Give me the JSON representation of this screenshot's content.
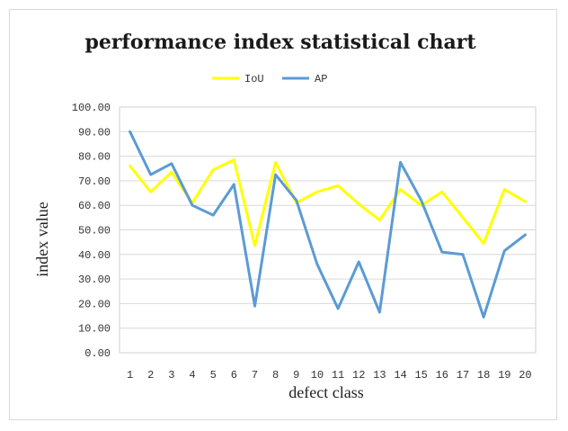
{
  "chart_data": {
    "type": "line",
    "title": "performance index statistical chart",
    "xlabel": "defect class",
    "ylabel": "index value",
    "categories": [
      "1",
      "2",
      "3",
      "4",
      "5",
      "6",
      "7",
      "8",
      "9",
      "10",
      "11",
      "12",
      "13",
      "14",
      "15",
      "16",
      "17",
      "18",
      "19",
      "20"
    ],
    "ylim": [
      0,
      100
    ],
    "yticks": [
      "0.00",
      "10.00",
      "20.00",
      "30.00",
      "40.00",
      "50.00",
      "60.00",
      "70.00",
      "80.00",
      "90.00",
      "100.00"
    ],
    "legend_position": "top",
    "grid": true,
    "series": [
      {
        "name": "IoU",
        "color": "#FFFF00",
        "values": [
          76,
          65.5,
          73.5,
          61,
          74.5,
          78.5,
          43.5,
          77.5,
          61,
          65.5,
          68,
          60.5,
          54,
          66.5,
          60,
          65.5,
          55,
          44.5,
          66.5,
          61.5
        ]
      },
      {
        "name": "AP",
        "color": "#5B9BD5",
        "values": [
          90,
          72.5,
          77,
          60,
          56,
          68.5,
          19,
          72.5,
          62,
          36,
          18,
          37,
          16.5,
          77.5,
          62,
          41,
          40,
          14.5,
          41.5,
          48
        ]
      }
    ]
  }
}
